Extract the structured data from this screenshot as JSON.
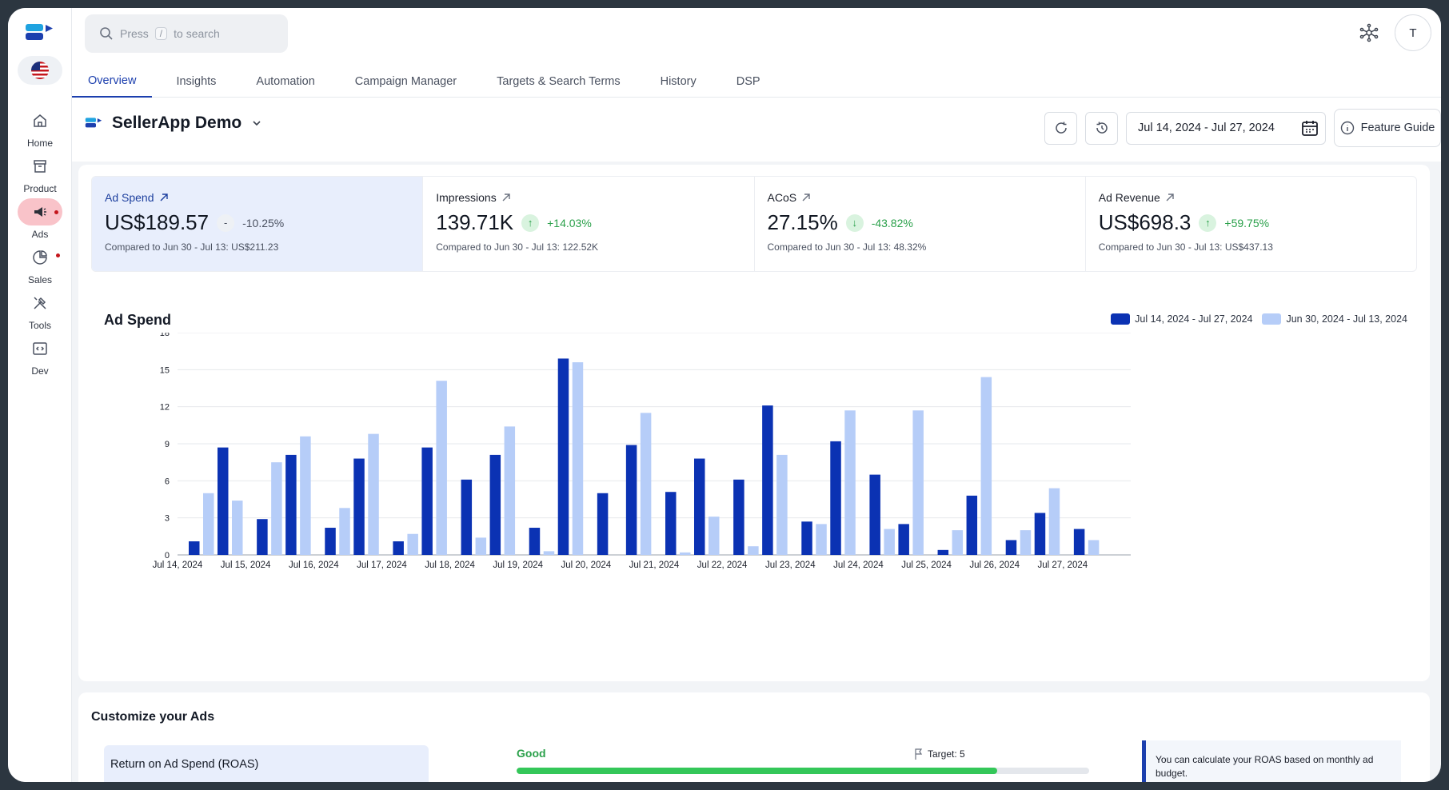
{
  "search": {
    "press": "Press",
    "key": "/",
    "rest": "to search"
  },
  "user": {
    "initial": "T"
  },
  "sidebar": {
    "items": [
      {
        "label": "Home"
      },
      {
        "label": "Product"
      },
      {
        "label": "Ads"
      },
      {
        "label": "Sales"
      },
      {
        "label": "Tools"
      },
      {
        "label": "Dev"
      }
    ]
  },
  "tabs": [
    "Overview",
    "Insights",
    "Automation",
    "Campaign Manager",
    "Targets & Search Terms",
    "History",
    "DSP"
  ],
  "header": {
    "account": "SellerApp Demo",
    "date_range": "Jul 14, 2024 - Jul 27, 2024",
    "feature_guide": "Feature Guide"
  },
  "metrics": [
    {
      "title": "Ad Spend",
      "value": "US$189.57",
      "indicator": "-",
      "change": "-10.25%",
      "compare": "Compared to Jun 30 - Jul 13: US$211.23"
    },
    {
      "title": "Impressions",
      "value": "139.71K",
      "indicator": "↑",
      "change": "+14.03%",
      "compare": "Compared to Jun 30 - Jul 13: 122.52K"
    },
    {
      "title": "ACoS",
      "value": "27.15%",
      "indicator": "↓",
      "change": "-43.82%",
      "compare": "Compared to Jun 30 - Jul 13: 48.32%"
    },
    {
      "title": "Ad Revenue",
      "value": "US$698.3",
      "indicator": "↑",
      "change": "+59.75%",
      "compare": "Compared to Jun 30 - Jul 13: US$437.13"
    }
  ],
  "colors": {
    "current": "#0b32b3",
    "previous": "#b6cdf8",
    "accent": "#1c3fae",
    "good": "#34c759"
  },
  "chart_title": "Ad Spend",
  "chart_data": {
    "type": "bar",
    "title": "Ad Spend",
    "categories": [
      "Jul 14, 2024",
      "Jul 15, 2024",
      "Jul 16, 2024",
      "Jul 17, 2024",
      "Jul 18, 2024",
      "Jul 19, 2024",
      "Jul 20, 2024",
      "Jul 21, 2024",
      "Jul 22, 2024",
      "Jul 23, 2024",
      "Jul 24, 2024",
      "Jul 25, 2024",
      "Jul 26, 2024",
      "Jul 27, 2024"
    ],
    "series": [
      {
        "name": "Jul 14, 2024 - Jul 27, 2024",
        "values": [
          1.1,
          2.9,
          2.2,
          1.1,
          6.1,
          2.2,
          5.0,
          5.1,
          6.1,
          2.7,
          6.5,
          0.4,
          1.2,
          2.1
        ],
        "values_b": [
          8.7,
          8.1,
          7.8,
          8.7,
          8.1,
          15.9,
          8.9,
          7.8,
          12.1,
          9.2,
          2.5,
          4.8,
          3.4,
          0
        ]
      },
      {
        "name": "Jun 30, 2024 - Jul 13, 2024",
        "values": [
          5.0,
          7.5,
          3.8,
          1.7,
          1.4,
          0.3,
          0,
          0.2,
          0.7,
          2.5,
          2.1,
          2.0,
          2.0,
          1.2
        ],
        "values_b": [
          4.4,
          9.6,
          9.8,
          14.1,
          10.4,
          15.6,
          11.5,
          3.1,
          8.1,
          11.7,
          11.7,
          14.4,
          5.4,
          0
        ]
      }
    ],
    "ylim": [
      0,
      18
    ],
    "yticks": [
      0,
      3,
      6,
      9,
      12,
      15,
      18
    ],
    "grid": true,
    "legend": "top-right"
  },
  "customize": {
    "title": "Customize your Ads",
    "roas_label": "Return on Ad Spend (ROAS)",
    "status": "Good",
    "target": "Target: 5",
    "progress": 0.84,
    "info": "You can calculate your ROAS based on monthly ad budget."
  }
}
